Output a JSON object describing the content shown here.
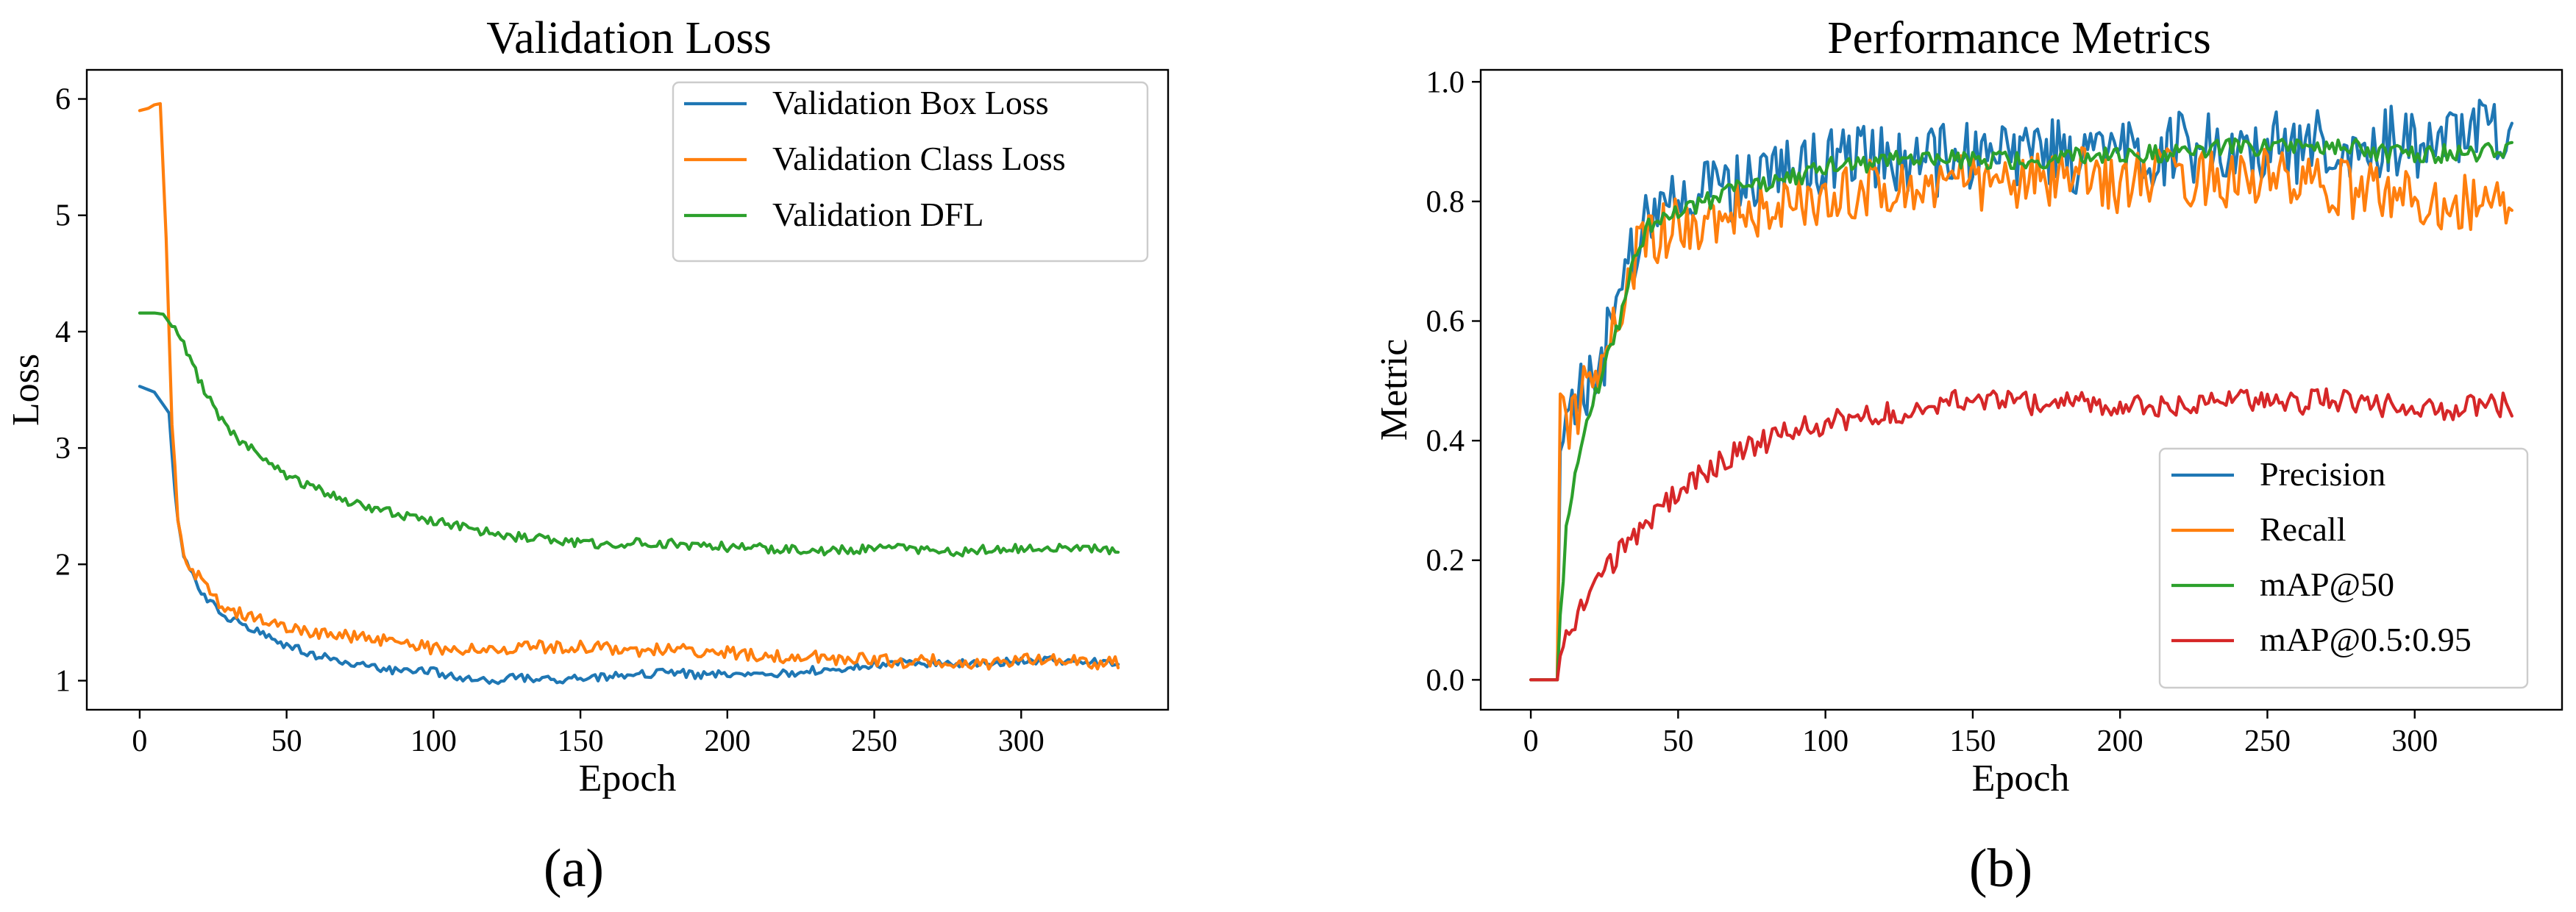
{
  "panel_labels": [
    "(a)",
    "(b)"
  ],
  "chart_data": [
    {
      "type": "line",
      "title": "Validation Loss",
      "xlabel": "Epoch",
      "ylabel": "Loss",
      "xlim": [
        -18,
        350
      ],
      "ylim": [
        0.75,
        6.25
      ],
      "xticks": [
        0,
        50,
        100,
        150,
        200,
        250,
        300
      ],
      "yticks": [
        1,
        2,
        3,
        4,
        5,
        6
      ],
      "ytick_decimals": 0,
      "legend_position": "top-right",
      "series": [
        {
          "name": "Validation Box Loss",
          "color": "#1f77b4",
          "x": [
            0,
            5,
            10,
            12,
            15,
            20,
            25,
            30,
            40,
            50,
            60,
            70,
            80,
            90,
            100,
            110,
            120,
            130,
            140,
            150,
            160,
            170,
            180,
            190,
            200,
            210,
            220,
            230,
            240,
            250,
            260,
            270,
            280,
            290,
            300,
            310,
            320,
            333
          ],
          "y": [
            3.53,
            3.48,
            3.3,
            2.6,
            2.05,
            1.8,
            1.65,
            1.55,
            1.42,
            1.3,
            1.22,
            1.16,
            1.12,
            1.07,
            1.08,
            1.02,
            1.0,
            1.03,
            1.0,
            1.02,
            1.04,
            1.05,
            1.08,
            1.05,
            1.06,
            1.08,
            1.06,
            1.09,
            1.1,
            1.14,
            1.16,
            1.14,
            1.15,
            1.16,
            1.17,
            1.17,
            1.18,
            1.15
          ],
          "noise": 0.035
        },
        {
          "name": "Validation Class Loss",
          "color": "#ff7f0e",
          "x": [
            0,
            3,
            5,
            7,
            9,
            11,
            13,
            15,
            18,
            22,
            26,
            30,
            40,
            50,
            60,
            70,
            80,
            90,
            100,
            110,
            120,
            130,
            140,
            150,
            160,
            170,
            180,
            190,
            200,
            210,
            220,
            230,
            240,
            250,
            260,
            270,
            280,
            290,
            300,
            310,
            320,
            333
          ],
          "y": [
            5.9,
            5.92,
            5.95,
            5.96,
            4.8,
            3.2,
            2.4,
            2.1,
            1.95,
            1.85,
            1.7,
            1.6,
            1.55,
            1.47,
            1.42,
            1.38,
            1.35,
            1.33,
            1.28,
            1.27,
            1.26,
            1.3,
            1.28,
            1.3,
            1.28,
            1.25,
            1.28,
            1.25,
            1.24,
            1.22,
            1.2,
            1.2,
            1.18,
            1.18,
            1.16,
            1.17,
            1.16,
            1.15,
            1.18,
            1.17,
            1.16,
            1.15
          ],
          "noise": 0.055
        },
        {
          "name": "Validation DFL",
          "color": "#2ca02c",
          "x": [
            0,
            5,
            8,
            10,
            15,
            20,
            25,
            30,
            40,
            50,
            60,
            70,
            80,
            90,
            100,
            110,
            120,
            130,
            140,
            150,
            160,
            170,
            180,
            190,
            200,
            210,
            220,
            230,
            240,
            250,
            260,
            270,
            280,
            290,
            300,
            310,
            320,
            333
          ],
          "y": [
            4.16,
            4.16,
            4.15,
            4.08,
            3.9,
            3.6,
            3.35,
            3.15,
            2.95,
            2.75,
            2.65,
            2.55,
            2.48,
            2.42,
            2.38,
            2.32,
            2.27,
            2.23,
            2.22,
            2.18,
            2.17,
            2.19,
            2.18,
            2.16,
            2.15,
            2.14,
            2.13,
            2.12,
            2.12,
            2.13,
            2.14,
            2.12,
            2.11,
            2.13,
            2.14,
            2.15,
            2.14,
            2.12
          ],
          "noise": 0.04
        }
      ]
    },
    {
      "type": "line",
      "title": "Performance Metrics",
      "xlabel": "Epoch",
      "ylabel": "Metric",
      "xlim": [
        -17,
        350
      ],
      "ylim": [
        -0.05,
        1.02
      ],
      "xticks": [
        0,
        50,
        100,
        150,
        200,
        250,
        300
      ],
      "yticks": [
        0.0,
        0.2,
        0.4,
        0.6,
        0.8,
        1.0
      ],
      "ytick_decimals": 1,
      "legend_position": "bottom-right",
      "series": [
        {
          "name": "Precision",
          "color": "#1f77b4",
          "x": [
            0,
            9,
            10,
            12,
            15,
            20,
            25,
            30,
            35,
            40,
            50,
            60,
            70,
            80,
            90,
            100,
            110,
            120,
            130,
            140,
            150,
            160,
            170,
            180,
            190,
            200,
            210,
            220,
            230,
            240,
            250,
            260,
            270,
            280,
            290,
            300,
            310,
            320,
            333
          ],
          "y": [
            0.0,
            0.0,
            0.35,
            0.42,
            0.45,
            0.5,
            0.55,
            0.65,
            0.72,
            0.76,
            0.8,
            0.82,
            0.82,
            0.83,
            0.85,
            0.86,
            0.87,
            0.87,
            0.86,
            0.87,
            0.88,
            0.87,
            0.88,
            0.88,
            0.86,
            0.87,
            0.88,
            0.89,
            0.89,
            0.88,
            0.9,
            0.89,
            0.9,
            0.9,
            0.9,
            0.9,
            0.9,
            0.91,
            0.92
          ],
          "noise": 0.06,
          "start_noise": 10
        },
        {
          "name": "Recall",
          "color": "#ff7f0e",
          "x": [
            0,
            9,
            10,
            12,
            15,
            20,
            25,
            30,
            35,
            40,
            50,
            60,
            70,
            80,
            90,
            100,
            110,
            120,
            130,
            140,
            150,
            160,
            170,
            180,
            190,
            200,
            210,
            220,
            230,
            240,
            250,
            260,
            270,
            280,
            290,
            300,
            310,
            320,
            333
          ],
          "y": [
            0.0,
            0.0,
            0.45,
            0.42,
            0.45,
            0.5,
            0.55,
            0.62,
            0.7,
            0.74,
            0.76,
            0.77,
            0.78,
            0.79,
            0.8,
            0.81,
            0.82,
            0.82,
            0.82,
            0.83,
            0.83,
            0.83,
            0.83,
            0.84,
            0.84,
            0.83,
            0.84,
            0.84,
            0.84,
            0.84,
            0.84,
            0.83,
            0.82,
            0.82,
            0.82,
            0.8,
            0.8,
            0.8,
            0.79
          ],
          "noise": 0.05,
          "start_noise": 10
        },
        {
          "name": "mAP@50",
          "color": "#2ca02c",
          "x": [
            0,
            9,
            10,
            12,
            15,
            20,
            25,
            30,
            35,
            40,
            50,
            60,
            70,
            80,
            90,
            100,
            110,
            120,
            130,
            140,
            150,
            160,
            170,
            180,
            190,
            200,
            210,
            220,
            230,
            240,
            250,
            260,
            270,
            280,
            290,
            300,
            310,
            320,
            333
          ],
          "y": [
            0.0,
            0.0,
            0.1,
            0.25,
            0.35,
            0.45,
            0.52,
            0.6,
            0.7,
            0.76,
            0.78,
            0.8,
            0.82,
            0.83,
            0.84,
            0.86,
            0.86,
            0.87,
            0.87,
            0.87,
            0.87,
            0.87,
            0.87,
            0.87,
            0.88,
            0.88,
            0.88,
            0.88,
            0.89,
            0.89,
            0.89,
            0.89,
            0.89,
            0.89,
            0.88,
            0.88,
            0.88,
            0.88,
            0.89
          ],
          "noise": 0.015,
          "start_noise": 10
        },
        {
          "name": "mAP@0.5:0.95",
          "color": "#d62728",
          "x": [
            0,
            9,
            10,
            12,
            15,
            20,
            25,
            30,
            35,
            40,
            50,
            60,
            70,
            80,
            90,
            100,
            110,
            120,
            130,
            140,
            150,
            160,
            170,
            180,
            190,
            200,
            210,
            220,
            230,
            240,
            250,
            260,
            270,
            280,
            290,
            300,
            310,
            320,
            333
          ],
          "y": [
            0.0,
            0.0,
            0.04,
            0.07,
            0.1,
            0.14,
            0.18,
            0.21,
            0.24,
            0.27,
            0.31,
            0.35,
            0.38,
            0.4,
            0.42,
            0.43,
            0.44,
            0.45,
            0.45,
            0.46,
            0.47,
            0.47,
            0.46,
            0.47,
            0.46,
            0.46,
            0.46,
            0.46,
            0.47,
            0.47,
            0.46,
            0.46,
            0.47,
            0.46,
            0.46,
            0.46,
            0.45,
            0.46,
            0.46
          ],
          "noise": 0.02,
          "start_noise": 12
        }
      ]
    }
  ]
}
